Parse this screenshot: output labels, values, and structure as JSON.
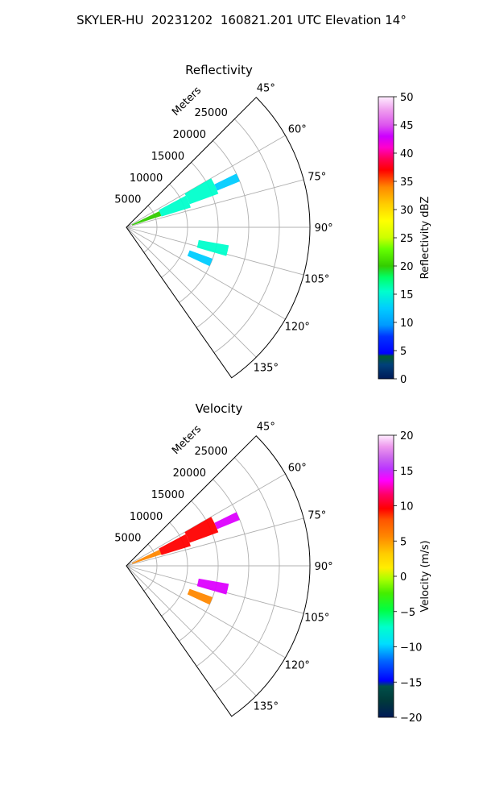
{
  "figure": {
    "suptitle": "SKYLER-HU  20231202  160821.201 UTC Elevation 14°"
  },
  "chart_data": [
    {
      "type": "polar-sector",
      "title": "Reflectivity",
      "radial_label": "Meters",
      "radial_ticks": [
        5000,
        10000,
        15000,
        20000,
        25000
      ],
      "rlim": [
        0,
        30000
      ],
      "theta_range_deg": [
        45,
        145
      ],
      "theta_ticks_deg": [
        45,
        60,
        75,
        90,
        105,
        120,
        135
      ],
      "grid": true,
      "colorbar": {
        "label": "Reflectivity dBZ",
        "ticks": [
          0,
          5,
          10,
          15,
          20,
          25,
          30,
          35,
          40,
          45,
          50
        ],
        "range": [
          0,
          50
        ],
        "colormap": "NWSRef"
      },
      "echo_regions": [
        {
          "azimuth_deg": [
            64,
            72
          ],
          "range_m": [
            1000,
            6000
          ],
          "value": 22
        },
        {
          "azimuth_deg": [
            62,
            73
          ],
          "range_m": [
            6000,
            11000
          ],
          "value": 17
        },
        {
          "azimuth_deg": [
            60,
            70
          ],
          "range_m": [
            11000,
            16000
          ],
          "value": 16
        },
        {
          "azimuth_deg": [
            64,
            68
          ],
          "range_m": [
            16000,
            20000
          ],
          "value": 13
        },
        {
          "azimuth_deg": [
            100,
            106
          ],
          "range_m": [
            12000,
            17000
          ],
          "value": 15
        },
        {
          "azimuth_deg": [
            110,
            115
          ],
          "range_m": [
            11000,
            15000
          ],
          "value": 13
        }
      ]
    },
    {
      "type": "polar-sector",
      "title": "Velocity",
      "radial_label": "Meters",
      "radial_ticks": [
        5000,
        10000,
        15000,
        20000,
        25000
      ],
      "rlim": [
        0,
        30000
      ],
      "theta_range_deg": [
        45,
        145
      ],
      "theta_ticks_deg": [
        45,
        60,
        75,
        90,
        105,
        120,
        135
      ],
      "grid": true,
      "colorbar": {
        "label": "Velocity (m/s)",
        "ticks": [
          -20,
          -15,
          -10,
          -5,
          0,
          5,
          10,
          15,
          20
        ],
        "range": [
          -20,
          20
        ],
        "colormap": "NWSVel"
      },
      "echo_regions": [
        {
          "azimuth_deg": [
            64,
            72
          ],
          "range_m": [
            1000,
            6000
          ],
          "value": 8
        },
        {
          "azimuth_deg": [
            62,
            73
          ],
          "range_m": [
            6000,
            11000
          ],
          "value": 10
        },
        {
          "azimuth_deg": [
            60,
            70
          ],
          "range_m": [
            11000,
            16000
          ],
          "value": 13
        },
        {
          "azimuth_deg": [
            64,
            68
          ],
          "range_m": [
            16000,
            20000
          ],
          "value": 15
        },
        {
          "azimuth_deg": [
            100,
            106
          ],
          "range_m": [
            12000,
            17000
          ],
          "value": 16
        },
        {
          "azimuth_deg": [
            110,
            115
          ],
          "range_m": [
            11000,
            15000
          ],
          "value": 8
        }
      ]
    }
  ]
}
